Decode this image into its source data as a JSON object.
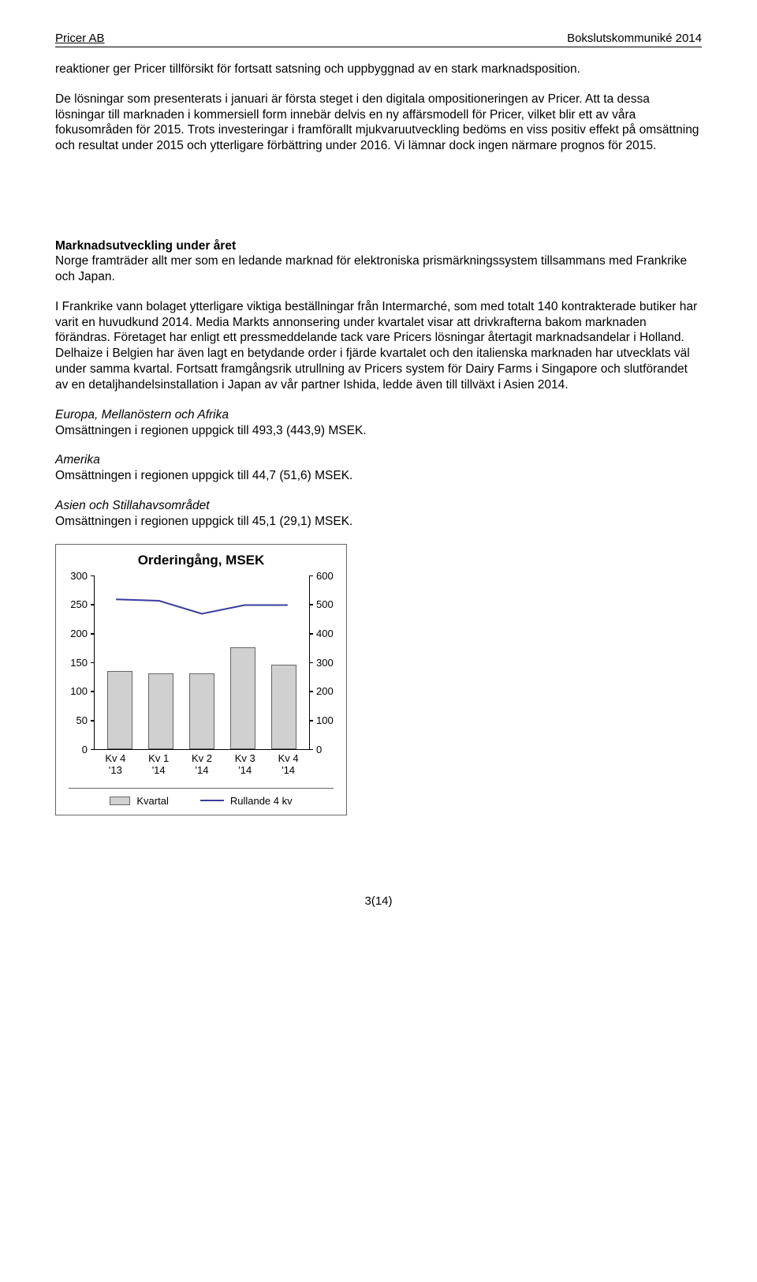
{
  "header": {
    "left": "Pricer AB",
    "right": "Bokslutskommuniké 2014"
  },
  "paragraphs": {
    "p1": "reaktioner ger Pricer tillförsikt för fortsatt satsning och uppbyggnad av en stark marknadsposition.",
    "p2": "De lösningar som presenterats i januari är första steget i den digitala ompositioneringen av Pricer. Att ta dessa lösningar till marknaden i kommersiell form innebär delvis en ny affärsmodell för Pricer, vilket blir ett av våra fokusområden för 2015. Trots investeringar i framförallt mjukvaruutveckling bedöms en viss positiv effekt på omsättning och resultat under 2015 och ytterligare förbättring under 2016. Vi lämnar dock ingen närmare prognos för 2015."
  },
  "market": {
    "heading": "Marknadsutveckling under året",
    "intro": "Norge framträder allt mer som en ledande marknad för elektroniska prismärkningssystem tillsammans med Frankrike och Japan.",
    "body": "I Frankrike vann bolaget ytterligare viktiga beställningar från Intermarché, som med totalt 140 kontrakterade butiker har varit en huvudkund 2014. Media Markts annonsering under kvartalet visar att drivkrafterna bakom marknaden förändras. Företaget har enligt ett pressmeddelande tack vare Pricers lösningar återtagit marknadsandelar i Holland. Delhaize i Belgien har även lagt en betydande order i fjärde kvartalet och den italienska marknaden har utvecklats väl under samma kvartal. Fortsatt framgångsrik utrullning av Pricers system för Dairy Farms i Singapore och slutförandet av en detaljhandelsinstallation i Japan av vår partner Ishida, ledde även till tillväxt i Asien 2014."
  },
  "regions": [
    {
      "title": "Europa, Mellanöstern och Afrika",
      "value": "Omsättningen i regionen uppgick till 493,3 (443,9) MSEK."
    },
    {
      "title": "Amerika",
      "value": "Omsättningen i regionen uppgick till 44,7 (51,6) MSEK."
    },
    {
      "title": "Asien och Stillahavsområdet",
      "value": "Omsättningen i regionen uppgick till 45,1 (29,1) MSEK."
    }
  ],
  "chart": {
    "title": "Orderingång, MSEK",
    "type": "bar-line",
    "categories": [
      "Kv 4\n'13",
      "Kv 1\n'14",
      "Kv 2\n'14",
      "Kv 3\n'14",
      "Kv 4\n'14"
    ],
    "bar_values": [
      135,
      130,
      130,
      175,
      145
    ],
    "line_values": [
      520,
      515,
      470,
      500,
      500
    ],
    "left_axis": {
      "min": 0,
      "max": 300,
      "step": 50,
      "ticks": [
        0,
        50,
        100,
        150,
        200,
        250,
        300
      ]
    },
    "right_axis": {
      "min": 0,
      "max": 600,
      "step": 100,
      "ticks": [
        0,
        100,
        200,
        300,
        400,
        500,
        600
      ]
    },
    "bar_color": "#d0d0d0",
    "bar_border": "#666666",
    "line_color": "#3b3b9e",
    "line_width": 2,
    "background_color": "#ffffff",
    "border_color": "#666666",
    "title_fontsize": 17,
    "axis_fontsize": 13,
    "legend": {
      "bar_label": "Kvartal",
      "line_label": "Rullande 4 kv"
    }
  },
  "footer": "3(14)"
}
